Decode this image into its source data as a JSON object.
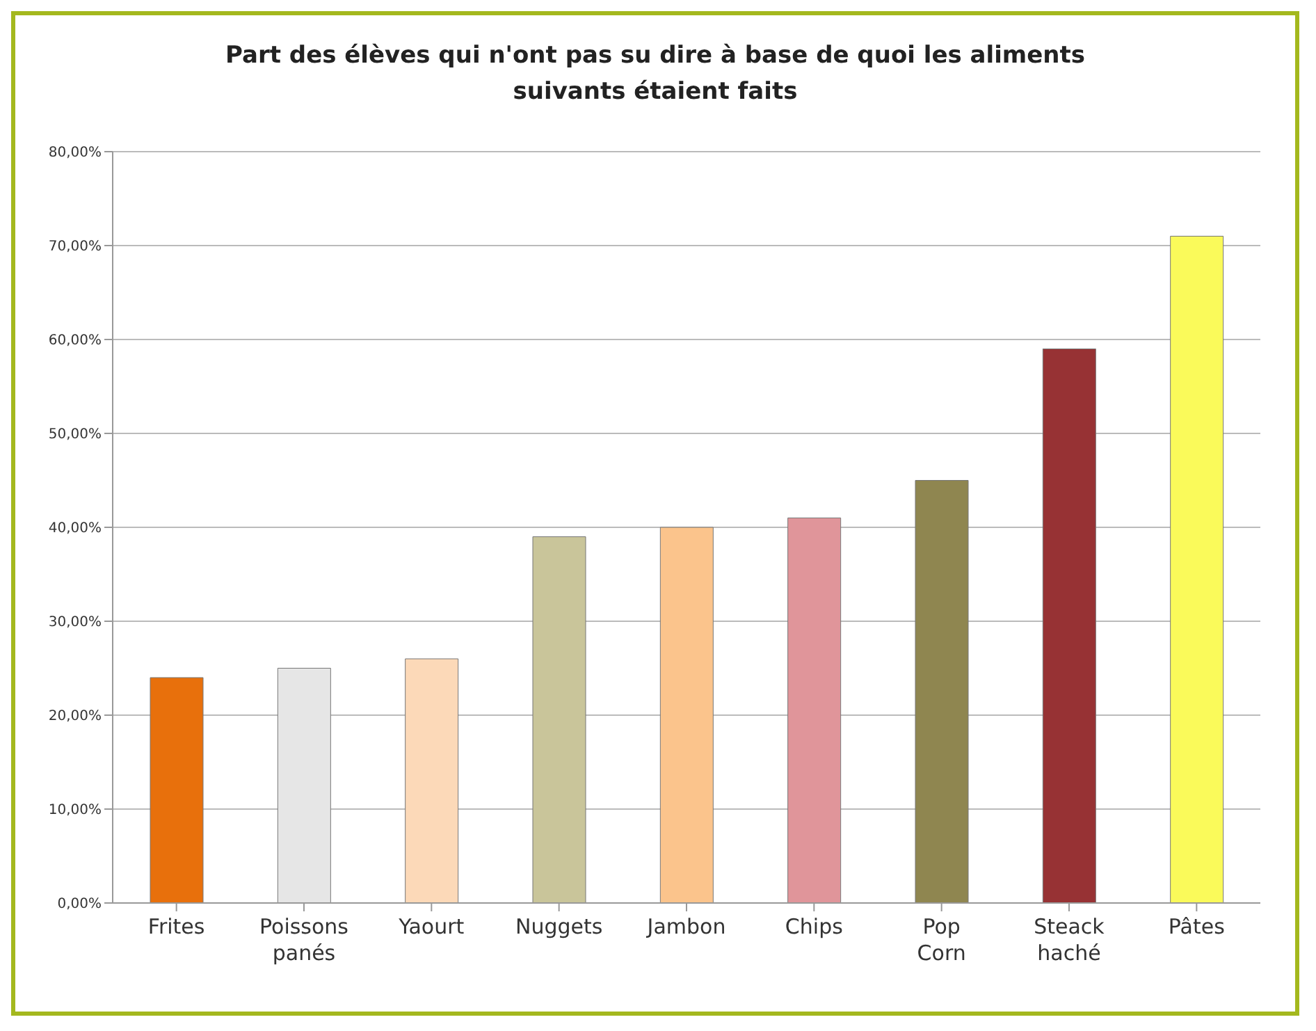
{
  "chart_data": {
    "type": "bar",
    "title": "Part des élèves qui n'ont pas su dire à base de quoi les aliments suivants étaient faits",
    "categories": [
      "Frites",
      "Poissons panés",
      "Yaourt",
      "Nuggets",
      "Jambon",
      "Chips",
      "Pop Corn",
      "Steack haché",
      "Pâtes"
    ],
    "values": [
      24,
      25,
      26,
      39,
      40,
      41,
      45,
      59,
      71
    ],
    "colors": [
      "#e8700c",
      "#e6e6e6",
      "#fcd9b8",
      "#c9c59a",
      "#fbc48c",
      "#e0959a",
      "#8f8650",
      "#973234",
      "#fafa5a"
    ],
    "ylim": [
      0,
      80
    ],
    "yticks": [
      {
        "value": 0,
        "label": "0,00%"
      },
      {
        "value": 10,
        "label": "10,00%"
      },
      {
        "value": 20,
        "label": "20,00%"
      },
      {
        "value": 30,
        "label": "30,00%"
      },
      {
        "value": 40,
        "label": "40,00%"
      },
      {
        "value": 50,
        "label": "50,00%"
      },
      {
        "value": 60,
        "label": "60,00%"
      },
      {
        "value": 70,
        "label": "70,00%"
      },
      {
        "value": 80,
        "label": "80,00%"
      }
    ],
    "grid": "y",
    "legend": false
  }
}
